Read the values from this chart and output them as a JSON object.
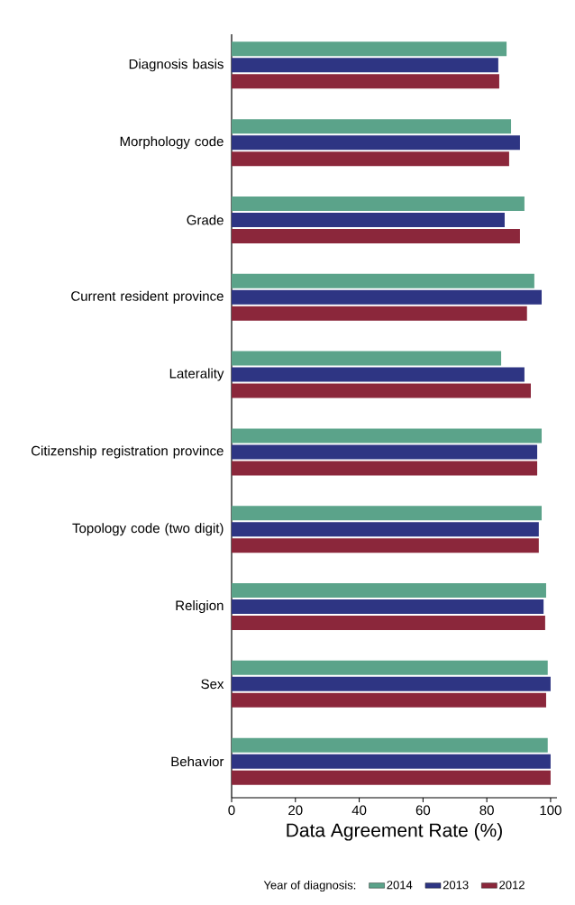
{
  "chart_data": {
    "type": "bar",
    "orientation": "horizontal",
    "categories": [
      "Diagnosis basis",
      "Morphology code",
      "Grade",
      "Current resident province",
      "Laterality",
      "Citizenship registration province",
      "Topology code  (two digit)",
      "Religion",
      "Sex",
      "Behavior"
    ],
    "series": [
      {
        "name": "2014",
        "color": "#5ba38a",
        "values": [
          86.2,
          87.6,
          91.8,
          94.9,
          84.5,
          97.2,
          97.2,
          98.6,
          99.1,
          99.1
        ]
      },
      {
        "name": "2013",
        "color": "#2e3583",
        "values": [
          83.6,
          90.4,
          85.6,
          97.2,
          91.8,
          95.8,
          96.3,
          97.8,
          100,
          100
        ]
      },
      {
        "name": "2012",
        "color": "#8b273b",
        "values": [
          83.9,
          87.0,
          90.4,
          92.6,
          93.8,
          95.8,
          96.3,
          98.3,
          98.6,
          100
        ]
      }
    ],
    "xlim": [
      0,
      102
    ],
    "xticks": [
      0,
      20,
      40,
      60,
      80,
      100
    ],
    "xlabel": "Data Agreement Rate (%)",
    "legend_title": "Year of diagnosis:",
    "legend": "bottom"
  }
}
